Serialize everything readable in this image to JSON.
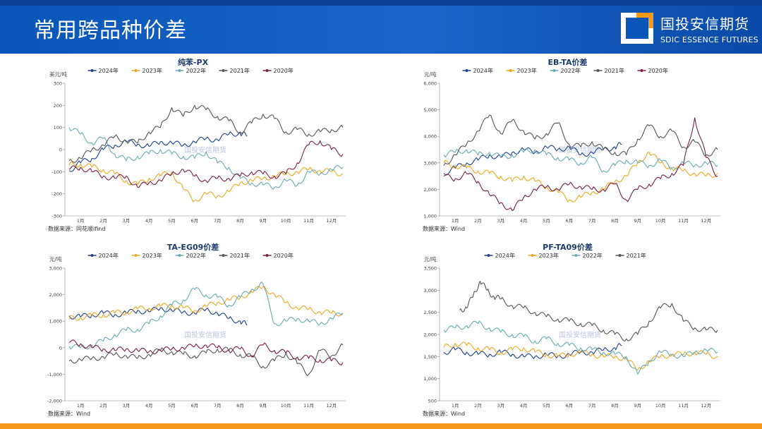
{
  "header": {
    "title": "常用跨品种价差",
    "logo_cn": "国投安信期货",
    "logo_en": "SDIC ESSENCE FUTURES",
    "colors": {
      "bar": "#0a56b8",
      "accent": "#f59a1b"
    }
  },
  "watermark": "国投安信期货",
  "series_colors": {
    "2024年": "#1f3f8f",
    "2023年": "#f0a820",
    "2022年": "#6aaab2",
    "2021年": "#555555",
    "2020年": "#7a1f46"
  },
  "chart_data": [
    {
      "type": "line",
      "title": "纯苯-PX",
      "unit": "美元/吨",
      "ylim": [
        -300,
        300
      ],
      "yticks": [
        "300",
        "200",
        "100",
        "0",
        "-100",
        "-200",
        "-300"
      ],
      "x_categories": [
        "1月",
        "2月",
        "3月",
        "4月",
        "5月",
        "6月",
        "7月",
        "8月",
        "9月",
        "10月",
        "11月",
        "12月"
      ],
      "source": "数据来源：同花顺ifind",
      "series": [
        {
          "name": "2024年",
          "x": [
            0,
            0.5,
            1,
            1.5,
            2,
            2.5,
            3,
            3.5,
            4,
            4.5,
            5,
            5.5,
            6,
            6.5,
            7,
            7.5,
            7.8
          ],
          "values": [
            -95,
            -60,
            -40,
            0,
            20,
            35,
            25,
            15,
            35,
            30,
            20,
            35,
            50,
            45,
            70,
            75,
            60
          ]
        },
        {
          "name": "2023年",
          "x": [
            0,
            0.5,
            1,
            1.5,
            2,
            2.5,
            3,
            3.5,
            4,
            4.5,
            5,
            5.5,
            6,
            6.5,
            7,
            7.5,
            8,
            8.5,
            9,
            9.5,
            10,
            10.5,
            11,
            11.5,
            12
          ],
          "values": [
            -70,
            -65,
            -80,
            -90,
            -110,
            -140,
            -160,
            -130,
            -120,
            -100,
            -180,
            -230,
            -200,
            -210,
            -190,
            -150,
            -140,
            -130,
            -120,
            -110,
            -100,
            -90,
            -95,
            -100,
            -110
          ]
        },
        {
          "name": "2022年",
          "x": [
            0,
            0.5,
            1,
            1.5,
            2,
            2.5,
            3,
            3.5,
            4,
            4.5,
            5,
            5.5,
            6,
            6.5,
            7,
            7.5,
            8,
            8.5,
            9,
            9.5,
            10,
            10.5,
            11,
            11.5,
            12
          ],
          "values": [
            100,
            70,
            30,
            50,
            -20,
            -50,
            -30,
            -20,
            0,
            -20,
            -30,
            -40,
            -10,
            -60,
            -80,
            -130,
            -150,
            -160,
            -170,
            -140,
            -160,
            -100,
            -110,
            -90,
            -80
          ]
        },
        {
          "name": "2021年",
          "x": [
            0,
            0.5,
            1,
            1.5,
            2,
            2.5,
            3,
            3.5,
            4,
            4.5,
            5,
            5.5,
            6,
            6.5,
            7,
            7.5,
            8,
            8.5,
            9,
            9.5,
            10,
            10.5,
            11,
            11.5,
            12
          ],
          "values": [
            -50,
            -40,
            0,
            20,
            60,
            40,
            30,
            80,
            100,
            190,
            150,
            200,
            180,
            150,
            130,
            80,
            120,
            160,
            140,
            80,
            90,
            70,
            80,
            90,
            100
          ]
        },
        {
          "name": "2020年",
          "x": [
            0,
            0.5,
            1,
            1.5,
            2,
            2.5,
            3,
            3.5,
            4,
            4.5,
            5,
            5.5,
            6,
            6.5,
            7,
            7.5,
            8,
            8.5,
            9,
            9.5,
            10,
            10.5,
            11,
            11.5,
            12
          ],
          "values": [
            -90,
            -80,
            -100,
            -120,
            -130,
            -120,
            -170,
            -150,
            -140,
            -110,
            -90,
            -120,
            -140,
            -130,
            -130,
            -120,
            -100,
            -110,
            -120,
            -110,
            -60,
            20,
            40,
            0,
            -20
          ]
        }
      ]
    },
    {
      "type": "line",
      "title": "EB-TA价差",
      "unit": "元/吨",
      "ylim": [
        1000,
        6000
      ],
      "yticks": [
        "6,000",
        "5,000",
        "4,000",
        "3,000",
        "2,000",
        "1,000"
      ],
      "x_categories": [
        "1月",
        "2月",
        "3月",
        "4月",
        "5月",
        "6月",
        "7月",
        "8月",
        "9月",
        "10月",
        "11月",
        "12月"
      ],
      "source": "数据来源：Wind",
      "series": [
        {
          "name": "2024年",
          "x": [
            0,
            0.5,
            1,
            1.5,
            2,
            2.5,
            3,
            3.5,
            4,
            4.5,
            5,
            5.5,
            6,
            6.5,
            7,
            7.5,
            7.8
          ],
          "values": [
            2600,
            2800,
            3000,
            3100,
            3300,
            3200,
            3400,
            3500,
            3400,
            3600,
            3500,
            3600,
            3300,
            3400,
            3500,
            3600,
            3700
          ]
        },
        {
          "name": "2023年",
          "x": [
            0,
            0.5,
            1,
            1.5,
            2,
            2.5,
            3,
            3.5,
            4,
            4.5,
            5,
            5.5,
            6,
            6.5,
            7,
            7.5,
            8,
            8.5,
            9,
            9.5,
            10,
            10.5,
            11,
            11.5,
            12
          ],
          "values": [
            3000,
            2900,
            2800,
            2700,
            2600,
            2500,
            2300,
            2500,
            2300,
            2100,
            1900,
            1600,
            1700,
            1900,
            2000,
            2300,
            2500,
            3000,
            3400,
            3000,
            2800,
            2700,
            2600,
            2500,
            2600
          ]
        },
        {
          "name": "2022年",
          "x": [
            0,
            0.5,
            1,
            1.5,
            2,
            2.5,
            3,
            3.5,
            4,
            4.5,
            5,
            5.5,
            6,
            6.5,
            7,
            7.5,
            8,
            8.5,
            9,
            9.5,
            10,
            10.5,
            11,
            11.5,
            12
          ],
          "values": [
            3300,
            3400,
            3500,
            3300,
            3400,
            3200,
            3300,
            3400,
            3500,
            3300,
            3200,
            3100,
            3000,
            3200,
            2700,
            2900,
            3100,
            3000,
            2900,
            3100,
            2800,
            3000,
            2900,
            3000,
            2900
          ]
        },
        {
          "name": "2021年",
          "x": [
            0,
            0.5,
            1,
            1.5,
            2,
            2.5,
            3,
            3.5,
            4,
            4.5,
            5,
            5.5,
            6,
            6.5,
            7,
            7.5,
            8,
            8.5,
            9,
            9.5,
            10,
            10.5,
            11,
            11.5,
            12
          ],
          "values": [
            2900,
            3300,
            3700,
            4200,
            4800,
            4100,
            4600,
            4200,
            3900,
            4100,
            4500,
            3700,
            3600,
            3800,
            3500,
            3400,
            3300,
            3900,
            4400,
            4000,
            4200,
            3600,
            3800,
            3300,
            3500
          ]
        },
        {
          "name": "2020年",
          "x": [
            0,
            0.5,
            1,
            1.5,
            2,
            2.5,
            3,
            3.5,
            4,
            4.5,
            5,
            5.5,
            6,
            6.5,
            7,
            7.5,
            8,
            8.5,
            9,
            9.5,
            10,
            10.5,
            11,
            11.5,
            12
          ],
          "values": [
            2500,
            2400,
            2600,
            2300,
            1800,
            1500,
            1200,
            1700,
            2000,
            2100,
            2000,
            2200,
            2100,
            2000,
            2000,
            2200,
            1600,
            2000,
            2200,
            2400,
            2600,
            2900,
            4700,
            3200,
            2500
          ]
        }
      ]
    },
    {
      "type": "line",
      "title": "TA-EG09价差",
      "unit": "元/吨",
      "ylim": [
        -2000,
        3000
      ],
      "yticks": [
        "3,000",
        "2,000",
        "1,000",
        "0",
        "-1,000",
        "-2,000"
      ],
      "x_categories": [
        "1月",
        "2月",
        "3月",
        "4月",
        "5月",
        "6月",
        "7月",
        "8月",
        "9月",
        "10月",
        "11月",
        "12月"
      ],
      "source": "数据来源：Wind",
      "series": [
        {
          "name": "2024年",
          "x": [
            0,
            0.5,
            1,
            1.5,
            2,
            2.5,
            3,
            3.5,
            4,
            4.5,
            5,
            5.5,
            6,
            6.5,
            7,
            7.5,
            7.8
          ],
          "values": [
            1200,
            1150,
            1250,
            1300,
            1250,
            1300,
            1400,
            1350,
            1500,
            1400,
            1350,
            1300,
            1450,
            1300,
            1100,
            1000,
            850
          ]
        },
        {
          "name": "2023年",
          "x": [
            0,
            0.5,
            1,
            1.5,
            2,
            2.5,
            3,
            3.5,
            4,
            4.5,
            5,
            5.5,
            6,
            6.5,
            7,
            7.5,
            8,
            8.5,
            9,
            9.5,
            10,
            10.5,
            11,
            11.5,
            12
          ],
          "values": [
            1100,
            1150,
            1200,
            1250,
            1300,
            1350,
            1450,
            1500,
            1550,
            1600,
            1500,
            1400,
            1550,
            1700,
            1800,
            1900,
            2100,
            2300,
            2000,
            1700,
            1500,
            1450,
            1350,
            1300,
            1300
          ]
        },
        {
          "name": "2022年",
          "x": [
            0,
            0.5,
            1,
            1.5,
            2,
            2.5,
            3,
            3.5,
            4,
            4.5,
            5,
            5.5,
            6,
            6.5,
            7,
            7.5,
            8,
            8.5,
            9,
            9.5,
            10,
            10.5,
            11,
            11.5,
            12
          ],
          "values": [
            50,
            0,
            100,
            250,
            500,
            650,
            700,
            900,
            1200,
            1600,
            1800,
            2200,
            2000,
            1900,
            1600,
            1900,
            2200,
            2400,
            900,
            1000,
            1100,
            1000,
            900,
            1100,
            1300
          ]
        },
        {
          "name": "2021年",
          "x": [
            0,
            0.5,
            1,
            1.5,
            2,
            2.5,
            3,
            3.5,
            4,
            4.5,
            5,
            5.5,
            6,
            6.5,
            7,
            7.5,
            8,
            8.5,
            9,
            9.5,
            10,
            10.5,
            11,
            11.5,
            12
          ],
          "values": [
            -500,
            -450,
            -400,
            -350,
            -250,
            -300,
            -400,
            -250,
            -100,
            -150,
            -250,
            -300,
            -200,
            -50,
            -100,
            -250,
            -350,
            -700,
            -500,
            -200,
            -600,
            -1000,
            -100,
            -300,
            100
          ]
        },
        {
          "name": "2020年",
          "x": [
            0,
            0.5,
            1,
            1.5,
            2,
            2.5,
            3,
            3.5,
            4,
            4.5,
            5,
            5.5,
            6,
            6.5,
            7,
            7.5,
            8,
            8.5,
            9,
            9.5,
            10,
            10.5,
            11,
            11.5,
            12
          ],
          "values": [
            200,
            150,
            0,
            -50,
            -100,
            -50,
            -100,
            -150,
            -100,
            -50,
            0,
            50,
            100,
            0,
            -100,
            -50,
            -300,
            100,
            -100,
            -200,
            -350,
            -400,
            -450,
            -500,
            -550
          ]
        }
      ]
    },
    {
      "type": "line",
      "title": "PF-TA09价差",
      "unit": "元/吨",
      "ylim": [
        500,
        3500
      ],
      "yticks": [
        "3,500",
        "3,000",
        "2,500",
        "2,000",
        "1,500",
        "1,000",
        "500"
      ],
      "x_categories": [
        "1月",
        "2月",
        "3月",
        "4月",
        "5月",
        "6月",
        "7月",
        "8月",
        "9月",
        "10月",
        "11月",
        "12月"
      ],
      "source": "数据来源：Wind",
      "series": [
        {
          "name": "2024年",
          "x": [
            0,
            0.5,
            1,
            1.5,
            2,
            2.5,
            3,
            3.5,
            4,
            4.5,
            5,
            5.5,
            6,
            6.5,
            7,
            7.5,
            7.8
          ],
          "values": [
            1600,
            1650,
            1600,
            1550,
            1550,
            1600,
            1550,
            1500,
            1500,
            1550,
            1500,
            1550,
            1600,
            1600,
            1650,
            1700,
            1750
          ]
        },
        {
          "name": "2023年",
          "x": [
            0,
            0.5,
            1,
            1.5,
            2,
            2.5,
            3,
            3.5,
            4,
            4.5,
            5,
            5.5,
            6,
            6.5,
            7,
            7.5,
            8,
            8.5,
            9,
            9.5,
            10,
            10.5,
            11,
            11.5,
            12
          ],
          "values": [
            1700,
            1800,
            1750,
            1700,
            1650,
            1600,
            1650,
            1700,
            1600,
            1550,
            1500,
            1550,
            1600,
            1550,
            1500,
            1500,
            1450,
            1200,
            1400,
            1500,
            1550,
            1550,
            1600,
            1550,
            1500
          ]
        },
        {
          "name": "2022年",
          "x": [
            0,
            0.5,
            1,
            1.5,
            2,
            2.5,
            3,
            3.5,
            4,
            4.5,
            5,
            5.5,
            6,
            6.5,
            7,
            7.5,
            8,
            8.5,
            9,
            9.5,
            10,
            10.5,
            11,
            11.5,
            12
          ],
          "values": [
            2100,
            2150,
            2200,
            2250,
            2150,
            2050,
            2000,
            1950,
            1850,
            1900,
            1800,
            1750,
            1700,
            1650,
            1600,
            1550,
            1500,
            1100,
            1400,
            1600,
            1550,
            1500,
            1600,
            1650,
            1600
          ]
        },
        {
          "name": "2021年",
          "x": [
            0.7,
            1,
            1.3,
            1.6,
            1.9,
            2.2,
            2.5,
            3,
            3.5,
            4,
            4.5,
            5,
            5.5,
            6,
            6.5,
            7,
            7.5,
            8,
            8.5,
            9,
            9.5,
            10,
            10.5,
            11,
            11.5,
            12
          ],
          "values": [
            2550,
            2600,
            2900,
            3200,
            3000,
            2850,
            2800,
            2650,
            2600,
            2500,
            2400,
            2350,
            2300,
            2250,
            2200,
            2100,
            2000,
            1900,
            2000,
            2300,
            2600,
            2700,
            2300,
            2150,
            2100,
            2100
          ]
        }
      ]
    }
  ]
}
